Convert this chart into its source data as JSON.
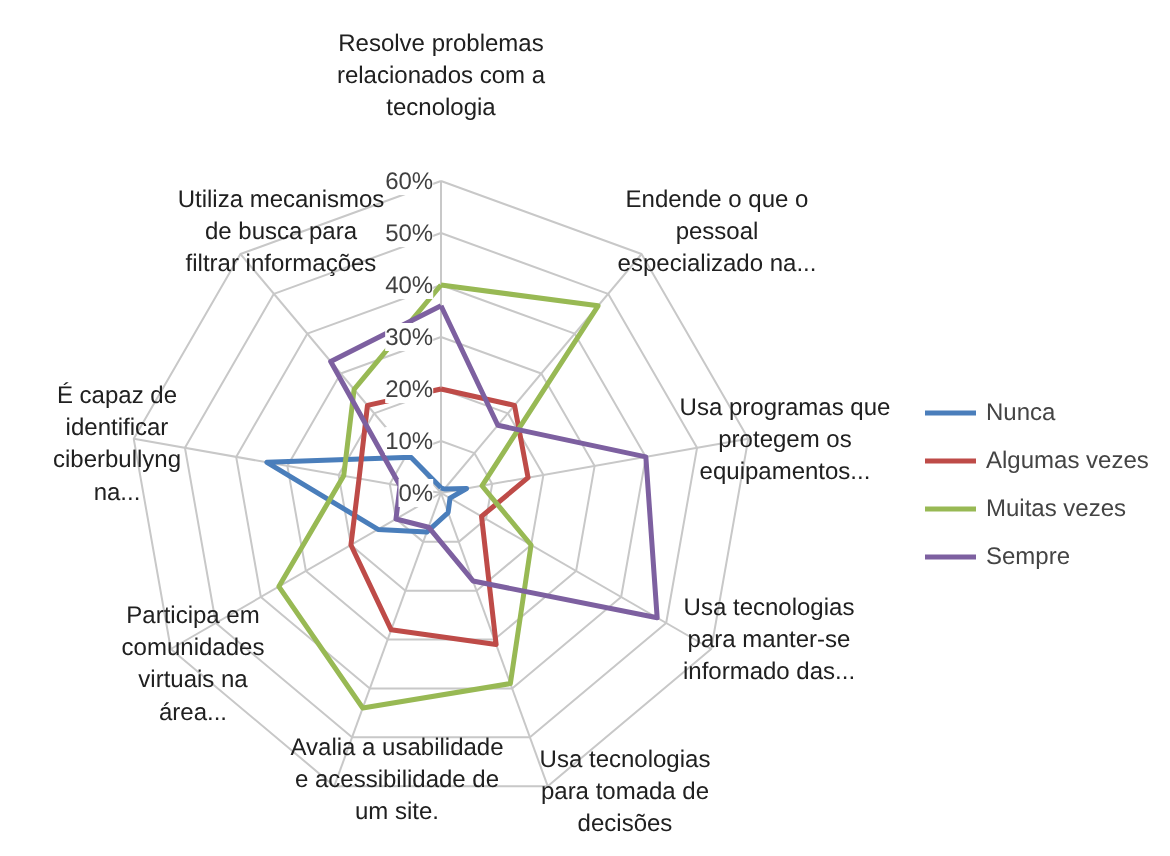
{
  "chart_data": {
    "type": "radar",
    "categories": [
      "Resolve problemas relacionados com a tecnologia",
      "Endende o que o pessoal especializado na...",
      "Usa programas que protegem os equipamentos...",
      "Usa tecnologias para manter-se informado das...",
      "Usa tecnologias para tomada de decisões",
      "Avalia a usabilidade e acessibilidade de um site.",
      "Participa em comunidades virtuais na área...",
      "É capaz de identificar ciberbullyng na...",
      "Utiliza mecanismos de busca para filtrar informações"
    ],
    "series": [
      {
        "name": "Nunca",
        "color": "#4a7ebb",
        "values": [
          1,
          1,
          5,
          2,
          4,
          8,
          14,
          34,
          9
        ]
      },
      {
        "name": "Algumas vezes",
        "color": "#be4b48",
        "values": [
          20,
          22,
          17,
          9,
          31,
          28,
          20,
          16,
          22
        ]
      },
      {
        "name": "Muitas vezes",
        "color": "#98b954",
        "values": [
          40,
          47,
          8,
          20,
          39,
          44,
          36,
          19,
          26
        ]
      },
      {
        "name": "Sempre",
        "color": "#7d60a0",
        "values": [
          36,
          17,
          40,
          48,
          18,
          7,
          10,
          8,
          33
        ]
      }
    ],
    "ylim": [
      0,
      60
    ],
    "yticks": [
      {
        "value": 0,
        "label": "0%"
      },
      {
        "value": 10,
        "label": "10%"
      },
      {
        "value": 20,
        "label": "20%"
      },
      {
        "value": 30,
        "label": "30%"
      },
      {
        "value": 40,
        "label": "40%"
      },
      {
        "value": 50,
        "label": "50%"
      },
      {
        "value": 60,
        "label": "60%"
      }
    ],
    "grid": true,
    "legend": "right"
  }
}
